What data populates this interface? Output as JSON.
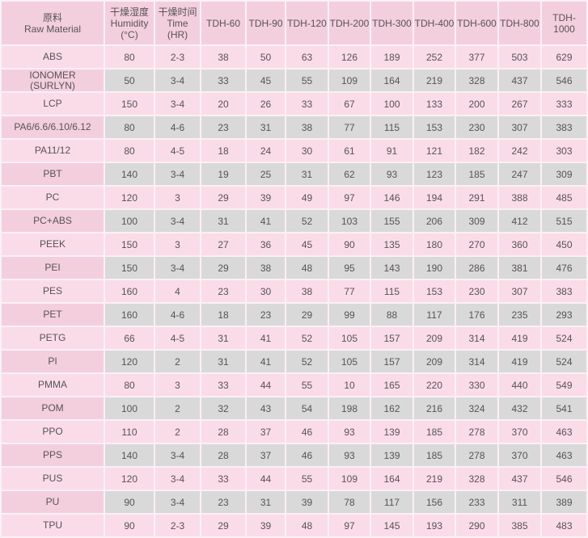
{
  "colors": {
    "header_bg": "#f3cfde",
    "first_column_bg": "#f3cfde",
    "pink_row_cell": "#fadce8",
    "gray_row_cell": "#d9d9d9",
    "grid_gap": "#fbf0f4",
    "text": "#585254"
  },
  "table": {
    "headers": [
      {
        "lines": [
          "原料",
          "Raw Material"
        ]
      },
      {
        "lines": [
          "干燥湿度",
          "Humidity",
          "(°C)"
        ]
      },
      {
        "lines": [
          "干燥时间",
          "Time",
          "(HR)"
        ]
      },
      {
        "lines": [
          "TDH-60"
        ]
      },
      {
        "lines": [
          "TDH-90"
        ]
      },
      {
        "lines": [
          "TDH-120"
        ]
      },
      {
        "lines": [
          "TDH-200"
        ]
      },
      {
        "lines": [
          "TDH-300"
        ]
      },
      {
        "lines": [
          "TDH-400"
        ]
      },
      {
        "lines": [
          "TDH-600"
        ]
      },
      {
        "lines": [
          "TDH-800"
        ]
      },
      {
        "lines": [
          "TDH-1000"
        ]
      }
    ],
    "rows": [
      {
        "material": "ABS",
        "values": [
          80,
          "2-3",
          38,
          50,
          63,
          126,
          189,
          252,
          377,
          503,
          629
        ]
      },
      {
        "material": "IONOMER\n(SURLYN)",
        "values": [
          50,
          "3-4",
          33,
          45,
          55,
          109,
          164,
          219,
          328,
          437,
          546
        ]
      },
      {
        "material": "LCP",
        "values": [
          150,
          "3-4",
          20,
          26,
          33,
          67,
          100,
          133,
          200,
          267,
          333
        ]
      },
      {
        "material": "PA6/6.6/6.10/6.12",
        "values": [
          80,
          "4-6",
          23,
          31,
          38,
          77,
          115,
          153,
          230,
          307,
          383
        ]
      },
      {
        "material": "PA11/12",
        "values": [
          80,
          "4-5",
          18,
          24,
          30,
          61,
          91,
          121,
          182,
          242,
          303
        ]
      },
      {
        "material": "PBT",
        "values": [
          140,
          "3-4",
          19,
          25,
          31,
          62,
          93,
          123,
          185,
          247,
          309
        ]
      },
      {
        "material": "PC",
        "values": [
          120,
          "3",
          29,
          39,
          49,
          97,
          146,
          194,
          291,
          388,
          485
        ]
      },
      {
        "material": "PC+ABS",
        "values": [
          100,
          "3-4",
          31,
          41,
          52,
          103,
          155,
          206,
          309,
          412,
          515
        ]
      },
      {
        "material": "PEEK",
        "values": [
          150,
          "3",
          27,
          36,
          45,
          90,
          135,
          180,
          270,
          360,
          450
        ]
      },
      {
        "material": "PEI",
        "values": [
          150,
          "3-4",
          29,
          38,
          48,
          95,
          143,
          190,
          286,
          381,
          476
        ]
      },
      {
        "material": "PES",
        "values": [
          160,
          "4",
          23,
          30,
          38,
          77,
          115,
          153,
          230,
          307,
          383
        ]
      },
      {
        "material": "PET",
        "values": [
          160,
          "4-6",
          18,
          23,
          29,
          99,
          88,
          117,
          176,
          235,
          293
        ]
      },
      {
        "material": "PETG",
        "values": [
          66,
          "4-5",
          31,
          41,
          52,
          105,
          157,
          209,
          314,
          419,
          524
        ]
      },
      {
        "material": "PI",
        "values": [
          120,
          "2",
          31,
          41,
          52,
          105,
          157,
          209,
          314,
          419,
          524
        ]
      },
      {
        "material": "PMMA",
        "values": [
          80,
          "3",
          33,
          44,
          55,
          10,
          165,
          220,
          330,
          440,
          549
        ]
      },
      {
        "material": "POM",
        "values": [
          100,
          "2",
          32,
          43,
          54,
          198,
          162,
          216,
          324,
          432,
          541
        ]
      },
      {
        "material": "PPO",
        "values": [
          110,
          "2",
          28,
          37,
          46,
          93,
          139,
          185,
          278,
          370,
          463
        ]
      },
      {
        "material": "PPS",
        "values": [
          140,
          "3-4",
          28,
          37,
          46,
          93,
          139,
          185,
          278,
          370,
          463
        ]
      },
      {
        "material": "PUS",
        "values": [
          120,
          "3-4",
          33,
          44,
          55,
          109,
          164,
          219,
          328,
          437,
          546
        ]
      },
      {
        "material": "PU",
        "values": [
          90,
          "3-4",
          23,
          31,
          39,
          78,
          117,
          156,
          233,
          311,
          389
        ]
      },
      {
        "material": "TPU",
        "values": [
          90,
          "2-3",
          29,
          39,
          48,
          97,
          145,
          193,
          290,
          385,
          483
        ]
      }
    ]
  },
  "chart_data": {
    "type": "table",
    "title": "Raw material drying parameters and TDH dryer capacities",
    "columns": [
      "原料 Raw Material",
      "干燥湿度 Humidity (°C)",
      "干燥时间 Time (HR)",
      "TDH-60",
      "TDH-90",
      "TDH-120",
      "TDH-200",
      "TDH-300",
      "TDH-400",
      "TDH-600",
      "TDH-800",
      "TDH-1000"
    ],
    "rows": [
      [
        "ABS",
        80,
        "2-3",
        38,
        50,
        63,
        126,
        189,
        252,
        377,
        503,
        629
      ],
      [
        "IONOMER (SURLYN)",
        50,
        "3-4",
        33,
        45,
        55,
        109,
        164,
        219,
        328,
        437,
        546
      ],
      [
        "LCP",
        150,
        "3-4",
        20,
        26,
        33,
        67,
        100,
        133,
        200,
        267,
        333
      ],
      [
        "PA6/6.6/6.10/6.12",
        80,
        "4-6",
        23,
        31,
        38,
        77,
        115,
        153,
        230,
        307,
        383
      ],
      [
        "PA11/12",
        80,
        "4-5",
        18,
        24,
        30,
        61,
        91,
        121,
        182,
        242,
        303
      ],
      [
        "PBT",
        140,
        "3-4",
        19,
        25,
        31,
        62,
        93,
        123,
        185,
        247,
        309
      ],
      [
        "PC",
        120,
        "3",
        29,
        39,
        49,
        97,
        146,
        194,
        291,
        388,
        485
      ],
      [
        "PC+ABS",
        100,
        "3-4",
        31,
        41,
        52,
        103,
        155,
        206,
        309,
        412,
        515
      ],
      [
        "PEEK",
        150,
        "3",
        27,
        36,
        45,
        90,
        135,
        180,
        270,
        360,
        450
      ],
      [
        "PEI",
        150,
        "3-4",
        29,
        38,
        48,
        95,
        143,
        190,
        286,
        381,
        476
      ],
      [
        "PES",
        160,
        "4",
        23,
        30,
        38,
        77,
        115,
        153,
        230,
        307,
        383
      ],
      [
        "PET",
        160,
        "4-6",
        18,
        23,
        29,
        99,
        88,
        117,
        176,
        235,
        293
      ],
      [
        "PETG",
        66,
        "4-5",
        31,
        41,
        52,
        105,
        157,
        209,
        314,
        419,
        524
      ],
      [
        "PI",
        120,
        "2",
        31,
        41,
        52,
        105,
        157,
        209,
        314,
        419,
        524
      ],
      [
        "PMMA",
        80,
        "3",
        33,
        44,
        55,
        10,
        165,
        220,
        330,
        440,
        549
      ],
      [
        "POM",
        100,
        "2",
        32,
        43,
        54,
        198,
        162,
        216,
        324,
        432,
        541
      ],
      [
        "PPO",
        110,
        "2",
        28,
        37,
        46,
        93,
        139,
        185,
        278,
        370,
        463
      ],
      [
        "PPS",
        140,
        "3-4",
        28,
        37,
        46,
        93,
        139,
        185,
        278,
        370,
        463
      ],
      [
        "PUS",
        120,
        "3-4",
        33,
        44,
        55,
        109,
        164,
        219,
        328,
        437,
        546
      ],
      [
        "PU",
        90,
        "3-4",
        23,
        31,
        39,
        78,
        117,
        156,
        233,
        311,
        389
      ],
      [
        "TPU",
        90,
        "2-3",
        29,
        39,
        48,
        97,
        145,
        193,
        290,
        385,
        483
      ]
    ]
  }
}
